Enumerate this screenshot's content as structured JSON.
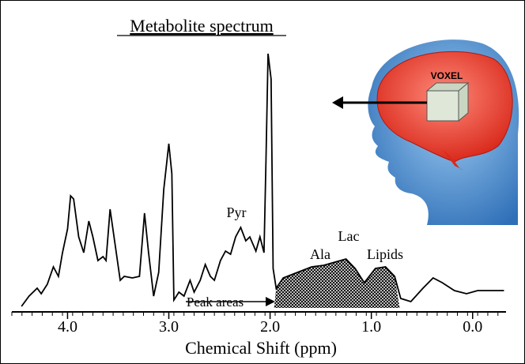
{
  "chart_data": {
    "type": "line",
    "title": "Metabolite spectrum",
    "x_label": "Chemical Shift (ppm)",
    "annotations": [
      "Pyr",
      "Ala",
      "Lac",
      "Lipids",
      "Peak areas",
      "VOXEL"
    ],
    "color": "#000000",
    "x": [
      4.455,
      4.38,
      4.3,
      4.26,
      4.2,
      4.14,
      4.09,
      4.05,
      4.0,
      3.97,
      3.94,
      3.89,
      3.84,
      3.79,
      3.75,
      3.7,
      3.65,
      3.62,
      3.58,
      3.53,
      3.48,
      3.44,
      3.36,
      3.29,
      3.24,
      3.2,
      3.15,
      3.1,
      3.05,
      3.0,
      2.97,
      2.95,
      2.9,
      2.85,
      2.79,
      2.75,
      2.69,
      2.64,
      2.59,
      2.55,
      2.49,
      2.44,
      2.39,
      2.34,
      2.29,
      2.24,
      2.2,
      2.14,
      2.1,
      2.06,
      2.04,
      2.02,
      1.99,
      1.97,
      1.94,
      1.87,
      1.75,
      1.59,
      1.47,
      1.36,
      1.25,
      1.16,
      1.07,
      0.96,
      0.86,
      0.77,
      0.71,
      0.61,
      0.49,
      0.39,
      0.3,
      0.18,
      0.06,
      -0.05,
      -0.17,
      -0.31
    ],
    "values": [
      2,
      15,
      25,
      18,
      30,
      52,
      40,
      70,
      100,
      142,
      138,
      90,
      70,
      110,
      90,
      60,
      65,
      60,
      125,
      80,
      35,
      40,
      38,
      40,
      120,
      70,
      15,
      45,
      150,
      208,
      170,
      10,
      20,
      15,
      35,
      20,
      35,
      55,
      40,
      35,
      60,
      72,
      68,
      90,
      102,
      85,
      90,
      72,
      90,
      70,
      190,
      322,
      290,
      50,
      25,
      38,
      44,
      52,
      54,
      58,
      62,
      50,
      32,
      50,
      52,
      40,
      12,
      8,
      25,
      38,
      32,
      22,
      18,
      22,
      22,
      22
    ],
    "shaded_x": [
      1.96,
      0.72
    ],
    "xlim": [
      4.55,
      -0.33
    ],
    "ylim": [
      0,
      330
    ],
    "xticks": [
      {
        "value": 4,
        "label": "4.0"
      },
      {
        "value": 3,
        "label": "3.0"
      },
      {
        "value": 2,
        "label": "2.0"
      },
      {
        "value": 1,
        "label": "1.0"
      },
      {
        "value": 0,
        "label": "0.0"
      }
    ]
  }
}
